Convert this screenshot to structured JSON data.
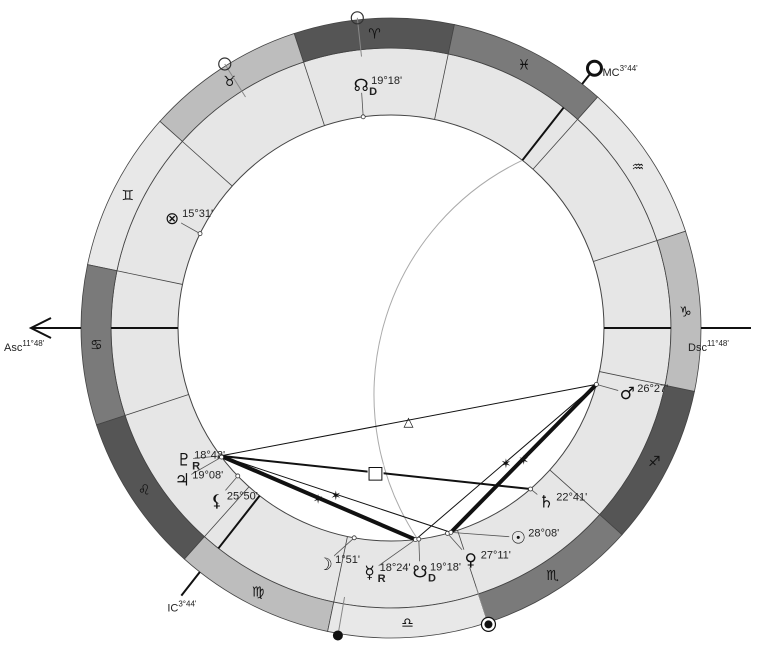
{
  "signs": [
    {
      "name": "Aries",
      "glyph": "♈",
      "color": "#555555"
    },
    {
      "name": "Taurus",
      "glyph": "♉",
      "color": "#bdbdbd"
    },
    {
      "name": "Gemini",
      "glyph": "♊",
      "color": "#e8e8e8"
    },
    {
      "name": "Cancer",
      "glyph": "♋",
      "color": "#7a7a7a"
    },
    {
      "name": "Leo",
      "glyph": "♌",
      "color": "#555555"
    },
    {
      "name": "Virgo",
      "glyph": "♍",
      "color": "#bdbdbd"
    },
    {
      "name": "Libra",
      "glyph": "♎",
      "color": "#e8e8e8"
    },
    {
      "name": "Scorpio",
      "glyph": "♏",
      "color": "#7a7a7a"
    },
    {
      "name": "Sagittarius",
      "glyph": "♐",
      "color": "#555555"
    },
    {
      "name": "Capricorn",
      "glyph": "♑",
      "color": "#bdbdbd"
    },
    {
      "name": "Aquarius",
      "glyph": "♒",
      "color": "#e8e8e8"
    },
    {
      "name": "Pisces",
      "glyph": "♓",
      "color": "#7a7a7a"
    }
  ],
  "angles": [
    {
      "id": "asc",
      "label": "Asc",
      "degree": "11°48'",
      "longitude": 101.8
    },
    {
      "id": "dsc",
      "label": "Dsc",
      "degree": "11°48'",
      "longitude": 281.8
    },
    {
      "id": "mc",
      "label": "MC",
      "degree": "3°44'",
      "longitude": 333.73
    },
    {
      "id": "ic",
      "label": "IC",
      "degree": "3°44'",
      "longitude": 153.73
    }
  ],
  "planets": [
    {
      "id": "north-node",
      "glyph": "☊",
      "sub": "D",
      "degree": "19°18'",
      "longitude": 19.3
    },
    {
      "id": "part-of-fortune",
      "glyph": "⊗",
      "sub": "",
      "degree": "15°31'",
      "longitude": 75.5
    },
    {
      "id": "pluto",
      "glyph": "♇",
      "sub": "R",
      "degree": "18°42'",
      "longitude": 138.7
    },
    {
      "id": "jupiter",
      "glyph": "♃",
      "sub": "",
      "degree": "19°08'",
      "longitude": 139.1
    },
    {
      "id": "lilith",
      "glyph": "⚸",
      "sub": "",
      "degree": "25°50'",
      "longitude": 145.8
    },
    {
      "id": "moon",
      "glyph": "☽",
      "sub": "",
      "degree": "1°51'",
      "longitude": 181.85
    },
    {
      "id": "mercury",
      "glyph": "☿",
      "sub": "R",
      "degree": "18°24'",
      "longitude": 198.4
    },
    {
      "id": "south-node",
      "glyph": "☋",
      "sub": "D",
      "degree": "19°18'",
      "longitude": 199.3
    },
    {
      "id": "venus",
      "glyph": "♀",
      "sub": "",
      "degree": "27°11'",
      "longitude": 207.18
    },
    {
      "id": "sun",
      "glyph": "☉",
      "sub": "",
      "degree": "28°08'",
      "longitude": 208.13
    },
    {
      "id": "saturn",
      "glyph": "♄",
      "sub": "",
      "degree": "22°41'",
      "longitude": 232.7
    },
    {
      "id": "mars",
      "glyph": "♂",
      "sub": "",
      "degree": "26°27'",
      "longitude": 266.45
    }
  ],
  "aspects": [
    {
      "from": "pluto",
      "to": "mars",
      "type": "trine",
      "symbol": "△",
      "weight": "thin"
    },
    {
      "from": "pluto",
      "to": "saturn",
      "type": "square",
      "symbol": "□",
      "weight": "medium"
    },
    {
      "from": "pluto",
      "to": "mercury",
      "type": "sextile",
      "symbol": "✶",
      "weight": "thick"
    },
    {
      "from": "pluto",
      "to": "sun",
      "type": "sextile",
      "symbol": "✶",
      "weight": "thin"
    },
    {
      "from": "mars",
      "to": "mercury",
      "type": "sextile",
      "symbol": "✶",
      "weight": "thin"
    },
    {
      "from": "mars",
      "to": "sun",
      "type": "sextile",
      "symbol": "✶",
      "weight": "thick"
    }
  ],
  "outer_markers": [
    {
      "type": "open-circle",
      "longitude": 18
    },
    {
      "type": "open-circle",
      "longitude": 44
    },
    {
      "type": "filled-dot",
      "longitude": 182
    },
    {
      "type": "bullseye",
      "longitude": 210
    }
  ]
}
